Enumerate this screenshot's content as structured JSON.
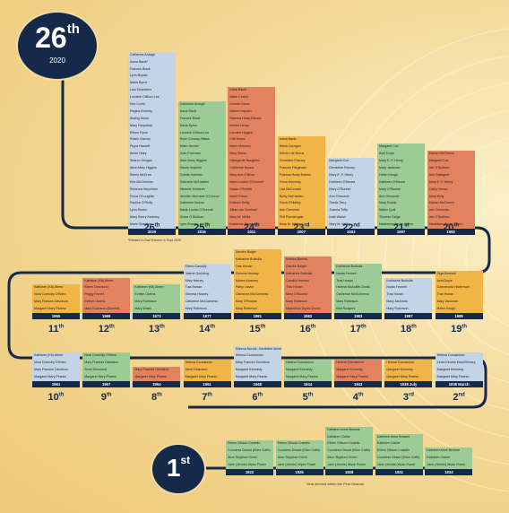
{
  "colors": {
    "navy": "#15294a",
    "blue": "#c3d4e6",
    "orange": "#e3825e",
    "green": "#9ccc95",
    "gold": "#f0b447"
  },
  "badge_top": {
    "ordinal": "26",
    "suffix": "th",
    "year": "2020"
  },
  "badge_bottom": {
    "ordinal": "1",
    "suffix": "st"
  },
  "footnote": "*Elected to Dail Eireann in Sept 2020",
  "bottom_note": "Year elected within the First Seanad",
  "rows": [
    {
      "id": "row1",
      "cols": [
        {
          "ordinal": "26",
          "suffix": "th",
          "year": "2020",
          "color": "blue",
          "names": [
            "Catherine Ardagh",
            "Ivana Bacik*",
            "Frances Black",
            "Lynn Boylan",
            "Maria Byrne",
            "Lisa Chambers",
            "Lorraine Clifford-Lee",
            "Erin Currie",
            "Regina Doherty",
            "Aisling Dolan",
            "Mary Fitzpatrick",
            "Eileen Flynn",
            "Róisín Garvey",
            "Pippa Hackett",
            "Annie Hoey",
            "Sharon Keogan",
            "Alice-Mary Higgins",
            "Eileen McCrea",
            "Erin McGreehan",
            "Rebecca Moynihan",
            "Fiona O'Loughlin",
            "Pauline O'Reilly",
            "Lynn Ruane",
            "Mary Seery Kearney",
            "Marie Sherlock"
          ]
        },
        {
          "ordinal": "25",
          "suffix": "th",
          "year": "2016",
          "color": "green",
          "names": [
            "Catherine Ardagh",
            "Ivana Bacik",
            "Frances Black",
            "Maria Byrne",
            "Lorraine Clifford-Lee",
            "Rose Conway-Walsh",
            "Máire Devine",
            "Joan Freeman",
            "Alice-Mary Higgins",
            "Maura Hopkins",
            "Colette Kelleher",
            "Gabrielle McFadden",
            "Michelle Mulherin",
            "Jennifer Murnane O'Connor",
            "Catherine Noone",
            "Marie-Louise O'Donnell",
            "Grace O'Sullivan",
            "Lynn Ruane"
          ]
        },
        {
          "ordinal": "24",
          "suffix": "th",
          "year": "2011",
          "color": "orange",
          "names": [
            "Ivana Bacik",
            "Marie Carroll",
            "Deirdre Clune",
            "Aideen Hayden",
            "Fidelma Healy Eames",
            "Imelda Henry",
            "Lorraine Higgins",
            "Cáit Keane",
            "Marie Maloney",
            "Mary Moran",
            "Hildegarde Naughton",
            "Catherine Noone",
            "Mary Ann O'Brien",
            "Marie-Louise O'Donnell",
            "Susan O'Keeffe",
            "Averil Power",
            "Kathryn Reilly",
            "Jillian van Turnhout",
            "Mary M. White",
            "Katherine Zappone"
          ]
        },
        {
          "ordinal": "23",
          "suffix": "rd",
          "year": "2007",
          "color": "gold",
          "names": [
            "Ivana Bacik",
            "Maria Corrigan",
            "Déirdre de Búrca",
            "Geraldine Feeney",
            "Frances Fitzgerald",
            "Fidelma Healy Eames",
            "Fiona Kennedy",
            "Lisa McDonald",
            "Nicky McFadden",
            "Fiona O'Malley",
            "Ann Ormonde",
            "Phil Prendergast",
            "Mary M. White"
          ]
        },
        {
          "ordinal": "22",
          "nd": true,
          "suffix": "nd",
          "year": "2002",
          "color": "blue",
          "names": [
            "Margaret Cox",
            "Geraldine Feeney",
            "Mary E. F. Henry",
            "Kathleen O'Meara",
            "Mary O'Rourke",
            "Ann Ormonde",
            "Sheila Terry",
            "Joanna Tuffy",
            "Kate Walsh",
            "Mary M. White"
          ]
        },
        {
          "ordinal": "21",
          "suffix": "st",
          "year": "1997",
          "color": "green",
          "names": [
            "Margaret Cox",
            "Avril Doyle",
            "Mary E. F. Henry",
            "Mary Jackman",
            "Helen Keogh",
            "Kathleen O'Meara",
            "Mary O'Rourke",
            "Ann Ormonde",
            "Mary Ruddy",
            "Máirín Quill",
            "Therese Ridge",
            "Madeleine Taylor-Quinn"
          ]
        },
        {
          "ordinal": "20",
          "suffix": "th",
          "year": "1993",
          "color": "orange",
          "names": [
            "Marian McGennis",
            "Margaret Cox",
            "Jan O'Sullivan",
            "Ann Gallagher",
            "Mary E. F. Henry",
            "Cathy Honan",
            "Mary Kelly",
            "Marian McGennis",
            "Ann Ormonde",
            "Jan O'Sullivan",
            "Madeleine Taylor-Quinn"
          ]
        }
      ]
    },
    {
      "id": "row2",
      "cols": [
        {
          "ordinal": "11",
          "suffix": "th",
          "year": "1965",
          "color": "gold",
          "names": [
            "Kathleen (Kit) Ahern",
            "Nora Connolly O'Brien",
            "Mary Frances Davidson",
            "Margaret Mary Pearse"
          ]
        },
        {
          "ordinal": "12",
          "suffix": "th",
          "year": "1969",
          "color": "orange",
          "names": [
            "Kathleen (Kit) Ahern",
            "Eileen Desmond",
            "Peggy Farrell",
            "Evelyn Owens",
            "Mary Robinson (Bourke)"
          ]
        },
        {
          "ordinal": "13",
          "suffix": "th",
          "year": "1973",
          "color": "green",
          "names": [
            "Kathleen (Kit) Ahern",
            "Evelyn Owens",
            "Mary Robinson",
            "Mary Walsh"
          ]
        },
        {
          "ordinal": "14",
          "suffix": "th",
          "year": "1977",
          "color": "blue",
          "names": [
            "Eileen Cassidy",
            "Valerie Goulding",
            "Mary Harney",
            "Tras Honan",
            "Gemma Hussey",
            "Catherine McGuinness",
            "Mary Robinson"
          ]
        },
        {
          "ordinal": "15",
          "suffix": "th",
          "year": "1981",
          "color": "gold",
          "names": [
            "Deirdre Bolger",
            "Katharine Bulbulia",
            "Tras Honan",
            "Gemma Hussey",
            "Miriam Kearney",
            "Patsy Lawlor",
            "Catherine McGuinness",
            "Mary O'Rourke",
            "Mary Robinson"
          ]
        },
        {
          "ordinal": "16",
          "suffix": "th",
          "year": "1982",
          "color": "orange",
          "names": [
            "Monica Barnes",
            "Deirdre Bolger",
            "Katharine Bulbulia",
            "Camilla Hannon",
            "Tras Honan",
            "Mary O'Rourke",
            "Mary Robinson",
            "Madeleine Taylor-Quinn"
          ]
        },
        {
          "ordinal": "17",
          "suffix": "th",
          "year": "1983",
          "color": "green",
          "names": [
            "Katharine Bulbulia",
            "Nuala Fennell",
            "Tras Honan",
            "Helena McAuliffe-Ennis",
            "Catherine McGuinness",
            "Mary Robinson",
            "Brid Rodgers"
          ]
        },
        {
          "ordinal": "18",
          "suffix": "th",
          "year": "1987",
          "color": "blue",
          "names": [
            "Katharine Bulbulia",
            "Nuala Fennell",
            "Tras Honan",
            "Mary Jackman",
            "Mary Robinson"
          ]
        },
        {
          "ordinal": "19",
          "suffix": "th",
          "year": "1989",
          "color": "gold",
          "names": [
            "Olga Bennett",
            "Avril Doyle",
            "Carmencita Hederman",
            "Tras Honan",
            "Mary Jackman",
            "Helen Keogh"
          ]
        }
      ]
    },
    {
      "id": "row3",
      "cols": [
        {
          "ordinal": "10",
          "suffix": "th",
          "year": "1961",
          "color": "blue",
          "names": [
            "Kathleen (Kit) Ahern",
            "Nora Connolly O'Brien",
            "Mary Frances Davidson",
            "Margaret Mary Pearse"
          ]
        },
        {
          "ordinal": "9",
          "suffix": "th",
          "year": "1957",
          "color": "green",
          "names": [
            "Nora Connolly O'Brien",
            "Mary Frances Davidson",
            "Sene Desmond",
            "Margaret Mary Pearse"
          ]
        },
        {
          "ordinal": "8",
          "suffix": "th",
          "year": "1954",
          "color": "orange",
          "names": [
            "Mary Frances Davidson",
            "Margaret Mary Pearse"
          ]
        },
        {
          "ordinal": "7",
          "suffix": "th",
          "year": "1951",
          "color": "gold",
          "names": [
            "Helena Concannon",
            "Sene Desmond",
            "Margaret Mary Pearse"
          ]
        },
        {
          "ordinal": "6",
          "suffix": "th",
          "year": "1948",
          "color": "blue",
          "names": [
            "Eileena Buckle, Geraldine Wodehouse",
            "Helena Concannon",
            "Mary Frances Davidson",
            "Margaret Kennedy",
            "Margaret Mary Pearse"
          ]
        },
        {
          "ordinal": "5",
          "suffix": "th",
          "year": "1944",
          "color": "green",
          "names": [
            "Helena Concannon",
            "Margaret Kennedy",
            "Margaret Mary Pearse"
          ]
        },
        {
          "ordinal": "4",
          "suffix": "th",
          "year": "1943",
          "color": "orange",
          "names": [
            "Helena Concannon",
            "Margaret Kennedy",
            "Margaret Mary Pearse"
          ]
        },
        {
          "ordinal": "3",
          "suffix": "rd",
          "year": "1938 July",
          "color": "gold",
          "names": [
            "Helena Concannon",
            "Margaret Kennedy",
            "Margaret Mary Pearse"
          ]
        },
        {
          "ordinal": "2",
          "suffix": "nd",
          "year": "1938 March",
          "color": "blue",
          "names": [
            "Helena Concannon",
            "Linda Kearns MacWhinney",
            "Margaret Kennedy",
            "Margaret Mary Pearse"
          ]
        }
      ]
    },
    {
      "id": "row4",
      "cols": [
        {
          "ordinal": "",
          "suffix": "",
          "year": "1922",
          "color": "green",
          "names": [
            "Eileen Gibson Costello",
            "Countess Desart (Ellen Cuffe)",
            "Alice Stopford Green",
            "Jane (Jennie) Wyse Power"
          ]
        },
        {
          "ordinal": "",
          "suffix": "",
          "year": "1925",
          "color": "green",
          "names": [
            "Eileen Gibson Costello",
            "Countess Desart (Ellen Cuffe)",
            "Alice Stopford Green",
            "Jane (Jennie) Wyse Power"
          ]
        },
        {
          "ordinal": "",
          "suffix": "",
          "year": "1928",
          "color": "green",
          "names": [
            "Kathleen Anne Browne",
            "Kathleen Clarke",
            "Eileen Gibson Costello",
            "Countess Desart (Ellen Cuffe)",
            "Alice Stopford Green",
            "Jane (Jennie) Wyse Power"
          ]
        },
        {
          "ordinal": "",
          "suffix": "",
          "year": "1931",
          "color": "green",
          "names": [
            "Kathleen Anne Browne",
            "Kathleen Clarke",
            "Eileen Gibson Costello",
            "Countess Desart (Ellen Cuffe)",
            "Jane (Jennie) Wyse Power"
          ]
        },
        {
          "ordinal": "",
          "suffix": "",
          "year": "1934",
          "color": "green",
          "names": [
            "Kathleen Anne Browne",
            "Kathleen Clarke",
            "Jane (Jennie) Wyse Power"
          ]
        }
      ]
    }
  ]
}
